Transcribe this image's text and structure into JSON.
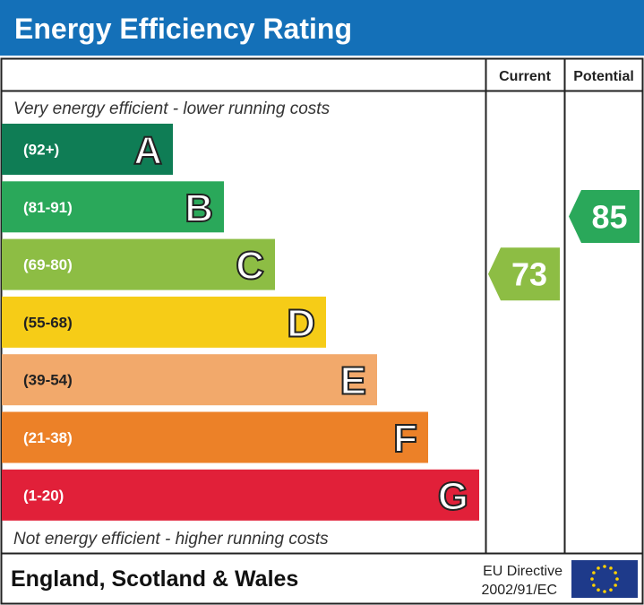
{
  "title": "Energy Efficiency Rating",
  "columns": {
    "current": "Current",
    "potential": "Potential"
  },
  "top_note": "Very energy efficient - lower running costs",
  "bottom_note": "Not energy efficient - higher running costs",
  "footer": {
    "region": "England, Scotland & Wales",
    "directive_line1": "EU Directive",
    "directive_line2": "2002/91/EC",
    "flag_icon": "eu-flag-icon"
  },
  "colors": {
    "header": "#1470b8",
    "eu_flag": "#1e3a8a",
    "eu_stars": "#ffd200"
  },
  "chart_data": {
    "type": "bar",
    "bands": [
      {
        "letter": "A",
        "range": "(92+)",
        "color": "#0f7d55"
      },
      {
        "letter": "B",
        "range": "(81-91)",
        "color": "#2aa85a"
      },
      {
        "letter": "C",
        "range": "(69-80)",
        "color": "#8dbd44"
      },
      {
        "letter": "D",
        "range": "(55-68)",
        "color": "#f6cc17"
      },
      {
        "letter": "E",
        "range": "(39-54)",
        "color": "#f2a96b"
      },
      {
        "letter": "F",
        "range": "(21-38)",
        "color": "#ec8128"
      },
      {
        "letter": "G",
        "range": "(1-20)",
        "color": "#e12039"
      }
    ],
    "current": {
      "value": "73",
      "band": "C",
      "color": "#8dbd44"
    },
    "potential": {
      "value": "85",
      "band": "B",
      "color": "#2aa85a"
    }
  }
}
